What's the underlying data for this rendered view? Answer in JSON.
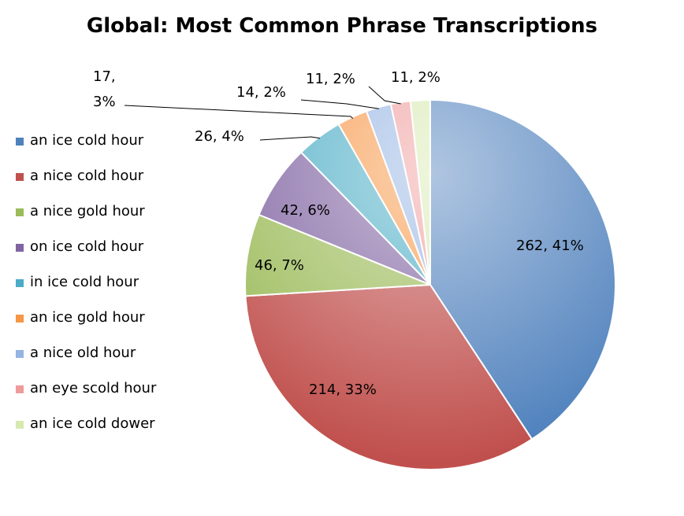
{
  "chart_data": {
    "type": "pie",
    "title": "Global: Most Common Phrase Transcriptions",
    "legend_position": "left",
    "slices": [
      {
        "name": "an ice cold hour",
        "value": 262,
        "percent": "41%",
        "label": "262, 41%",
        "color": "#4f81bd"
      },
      {
        "name": "a nice cold hour",
        "value": 214,
        "percent": "33%",
        "label": "214, 33%",
        "color": "#c0504d"
      },
      {
        "name": "a nice gold hour",
        "value": 46,
        "percent": "7%",
        "label": "46, 7%",
        "color": "#9bbb59"
      },
      {
        "name": "on ice cold hour",
        "value": 42,
        "percent": "6%",
        "label": "42, 6%",
        "color": "#8064a2"
      },
      {
        "name": "in ice cold hour",
        "value": 26,
        "percent": "4%",
        "label": "26, 4%",
        "color": "#4bacc6"
      },
      {
        "name": "an ice gold hour",
        "value": 17,
        "percent": "3%",
        "label_line1": "17,",
        "label_line2": "3%",
        "color": "#f79646"
      },
      {
        "name": "a nice old hour",
        "value": 14,
        "percent": "2%",
        "label": "14, 2%",
        "color": "#95b3e3"
      },
      {
        "name": "an eye scold hour",
        "value": 11,
        "percent": "2%",
        "label": "11, 2%",
        "color": "#f09a9a"
      },
      {
        "name": "an ice cold dower",
        "value": 11,
        "percent": "2%",
        "label": "11, 2%",
        "color": "#d7e9b0"
      }
    ]
  }
}
